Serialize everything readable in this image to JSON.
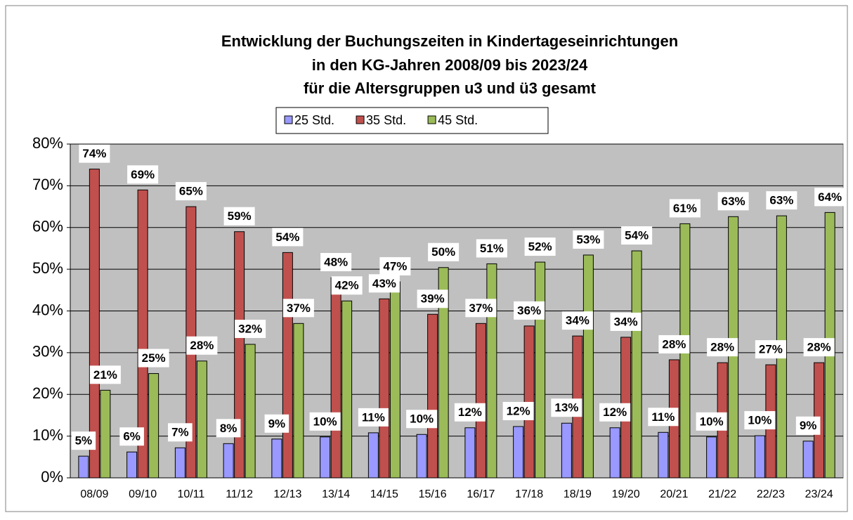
{
  "chart_data": {
    "type": "bar",
    "title": [
      "Entwicklung der Buchungszeiten in Kindertageseinrichtungen",
      "in den KG-Jahren 2008/09 bis 2023/24",
      "für die Altersgruppen u3 und ü3 gesamt"
    ],
    "categories": [
      "08/09",
      "09/10",
      "10/11",
      "11/12",
      "12/13",
      "13/14",
      "14/15",
      "15/16",
      "16/17",
      "17/18",
      "18/19",
      "19/20",
      "20/21",
      "21/22",
      "22/23",
      "23/24"
    ],
    "series": [
      {
        "name": "25 Std.",
        "color": "#9999ff",
        "values": [
          5.2,
          6.2,
          7.2,
          8.2,
          9.3,
          9.8,
          10.8,
          10.4,
          12.0,
          12.3,
          13.1,
          12.0,
          10.9,
          9.8,
          10.1,
          8.8
        ],
        "value_labels": [
          "5%",
          "6%",
          "7%",
          "8%",
          "9%",
          "10%",
          "11%",
          "10%",
          "12%",
          "12%",
          "13%",
          "12%",
          "11%",
          "10%",
          "10%",
          "9%"
        ]
      },
      {
        "name": "35 Std.",
        "color": "#c0504d",
        "values": [
          74,
          69,
          65,
          59,
          54,
          48,
          42.9,
          39.2,
          37.0,
          36.4,
          34.0,
          33.7,
          28.3,
          27.6,
          27.1,
          27.6
        ],
        "value_labels": [
          "74%",
          "69%",
          "65%",
          "59%",
          "54%",
          "48%",
          "43%",
          "39%",
          "37%",
          "36%",
          "34%",
          "34%",
          "28%",
          "28%",
          "27%",
          "28%"
        ]
      },
      {
        "name": "45 Std.",
        "color": "#9bbb59",
        "values": [
          21,
          25,
          28,
          32,
          37,
          42.4,
          47,
          50.4,
          51.3,
          51.7,
          53.4,
          54.4,
          60.9,
          62.6,
          62.8,
          63.6
        ],
        "value_labels": [
          "21%",
          "25%",
          "28%",
          "32%",
          "37%",
          "42%",
          "47%",
          "50%",
          "51%",
          "52%",
          "53%",
          "54%",
          "61%",
          "63%",
          "63%",
          "64%"
        ]
      }
    ],
    "ylim": [
      0,
      80
    ],
    "yticks": [
      {
        "value": 0,
        "label": "0%"
      },
      {
        "value": 10,
        "label": "10%"
      },
      {
        "value": 20,
        "label": "20%"
      },
      {
        "value": 30,
        "label": "30%"
      },
      {
        "value": 40,
        "label": "40%"
      },
      {
        "value": 50,
        "label": "50%"
      },
      {
        "value": 60,
        "label": "60%"
      },
      {
        "value": 70,
        "label": "70%"
      },
      {
        "value": 80,
        "label": "80%"
      }
    ],
    "grid": true,
    "legend": "top"
  }
}
